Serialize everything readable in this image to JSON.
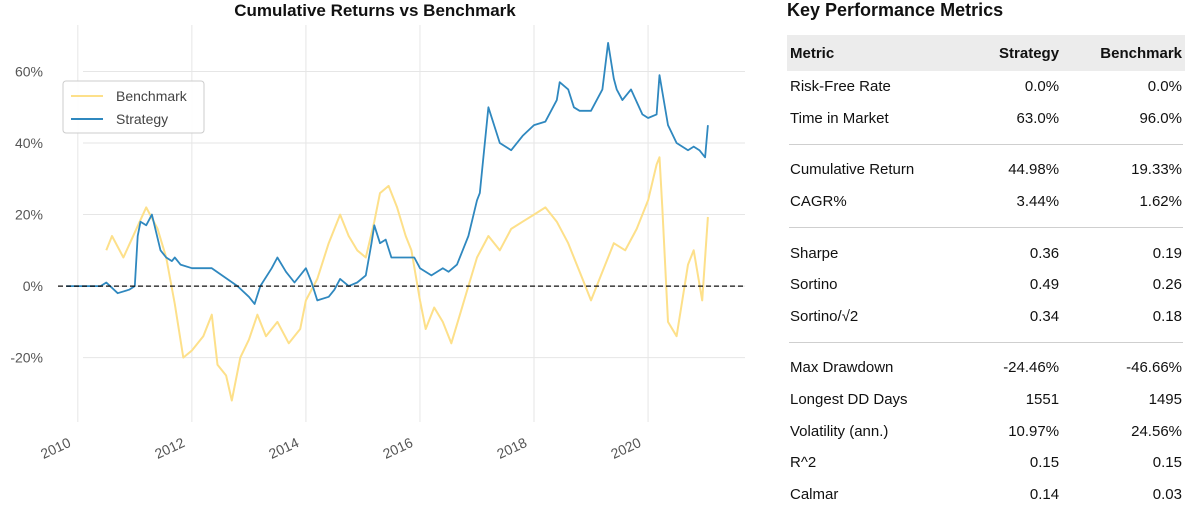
{
  "chart_data": {
    "type": "line",
    "title": "Cumulative Returns vs Benchmark",
    "xlabel": "",
    "ylabel": "",
    "x_ticks": [
      "2010",
      "2012",
      "2014",
      "2016",
      "2018",
      "2020"
    ],
    "y_ticks": [
      "-20%",
      "0%",
      "20%",
      "40%",
      "60%"
    ],
    "xlim": [
      2009.6,
      2021.7
    ],
    "ylim": [
      -38,
      73
    ],
    "grid": true,
    "legend": "top-left",
    "baseline": 0,
    "series": [
      {
        "name": "Benchmark",
        "color": "#fde08a",
        "x": [
          2010.5,
          2010.6,
          2010.8,
          2011.0,
          2011.2,
          2011.4,
          2011.55,
          2011.7,
          2011.85,
          2012.0,
          2012.2,
          2012.35,
          2012.45,
          2012.6,
          2012.7,
          2012.85,
          2013.0,
          2013.15,
          2013.3,
          2013.5,
          2013.7,
          2013.9,
          2014.0,
          2014.2,
          2014.4,
          2014.6,
          2014.75,
          2014.9,
          2015.05,
          2015.2,
          2015.3,
          2015.45,
          2015.6,
          2015.75,
          2015.85,
          2016.0,
          2016.1,
          2016.25,
          2016.4,
          2016.55,
          2016.7,
          2016.85,
          2017.0,
          2017.2,
          2017.4,
          2017.6,
          2017.8,
          2018.0,
          2018.2,
          2018.4,
          2018.6,
          2018.7,
          2018.85,
          2019.0,
          2019.2,
          2019.4,
          2019.6,
          2019.8,
          2020.0,
          2020.15,
          2020.2,
          2020.25,
          2020.35,
          2020.5,
          2020.7,
          2020.8,
          2020.95,
          2021.05
        ],
        "values": [
          10,
          14,
          8,
          15,
          22,
          16,
          8,
          -5,
          -20,
          -18,
          -14,
          -8,
          -22,
          -25,
          -32,
          -20,
          -15,
          -8,
          -14,
          -10,
          -16,
          -12,
          -4,
          2,
          12,
          20,
          14,
          10,
          8,
          18,
          26,
          28,
          22,
          14,
          10,
          -4,
          -12,
          -6,
          -10,
          -16,
          -8,
          0,
          8,
          14,
          10,
          16,
          18,
          20,
          22,
          18,
          12,
          8,
          2,
          -4,
          4,
          12,
          10,
          16,
          24,
          34,
          36,
          22,
          -10,
          -14,
          6,
          10,
          -4,
          19.33
        ]
      },
      {
        "name": "Strategy",
        "color": "#2f88bf",
        "x": [
          2009.8,
          2010.4,
          2010.5,
          2010.7,
          2010.9,
          2011.0,
          2011.05,
          2011.1,
          2011.2,
          2011.3,
          2011.45,
          2011.55,
          2011.65,
          2011.7,
          2011.8,
          2012.0,
          2012.2,
          2012.3,
          2012.35,
          2012.8,
          2013.0,
          2013.1,
          2013.2,
          2013.4,
          2013.5,
          2013.65,
          2013.8,
          2014.0,
          2014.1,
          2014.2,
          2014.4,
          2014.5,
          2014.6,
          2014.75,
          2014.9,
          2015.05,
          2015.15,
          2015.2,
          2015.3,
          2015.4,
          2015.5,
          2015.7,
          2015.9,
          2016.0,
          2016.2,
          2016.4,
          2016.5,
          2016.65,
          2016.75,
          2016.85,
          2017.0,
          2017.05,
          2017.2,
          2017.4,
          2017.6,
          2017.8,
          2018.0,
          2018.2,
          2018.4,
          2018.45,
          2018.6,
          2018.7,
          2018.8,
          2018.9,
          2019.0,
          2019.2,
          2019.3,
          2019.4,
          2019.45,
          2019.55,
          2019.7,
          2019.9,
          2020.0,
          2020.15,
          2020.2,
          2020.35,
          2020.5,
          2020.7,
          2020.8,
          2020.9,
          2021.0,
          2021.05
        ],
        "values": [
          0,
          0,
          1,
          -2,
          -1,
          0,
          14,
          18,
          17,
          20,
          10,
          8,
          7,
          8,
          6,
          5,
          5,
          5,
          5,
          0,
          -3,
          -5,
          0,
          5,
          8,
          4,
          1,
          5,
          1,
          -4,
          -3,
          -1,
          2,
          0,
          1,
          3,
          12,
          17,
          12,
          13,
          8,
          8,
          8,
          5,
          3,
          5,
          4,
          6,
          10,
          14,
          24,
          26,
          50,
          40,
          38,
          42,
          45,
          46,
          52,
          57,
          55,
          50,
          49,
          49,
          49,
          55,
          68,
          58,
          55,
          52,
          55,
          48,
          47,
          48,
          59,
          45,
          40,
          38,
          39,
          38,
          36,
          44.98
        ]
      }
    ]
  },
  "metrics": {
    "title": "Key Performance Metrics",
    "columns": [
      "Metric",
      "Strategy",
      "Benchmark"
    ],
    "groups": [
      [
        [
          "Risk-Free Rate",
          "0.0%",
          "0.0%"
        ],
        [
          "Time in Market",
          "63.0%",
          "96.0%"
        ]
      ],
      [
        [
          "Cumulative Return",
          "44.98%",
          "19.33%"
        ],
        [
          "CAGR%",
          "3.44%",
          "1.62%"
        ]
      ],
      [
        [
          "Sharpe",
          "0.36",
          "0.19"
        ],
        [
          "Sortino",
          "0.49",
          "0.26"
        ],
        [
          "Sortino/√2",
          "0.34",
          "0.18"
        ]
      ],
      [
        [
          "Max Drawdown",
          "-24.46%",
          "-46.66%"
        ],
        [
          "Longest DD Days",
          "1551",
          "1495"
        ],
        [
          "Volatility (ann.)",
          "10.97%",
          "24.56%"
        ],
        [
          "R^2",
          "0.15",
          "0.15"
        ],
        [
          "Calmar",
          "0.14",
          "0.03"
        ]
      ]
    ]
  }
}
